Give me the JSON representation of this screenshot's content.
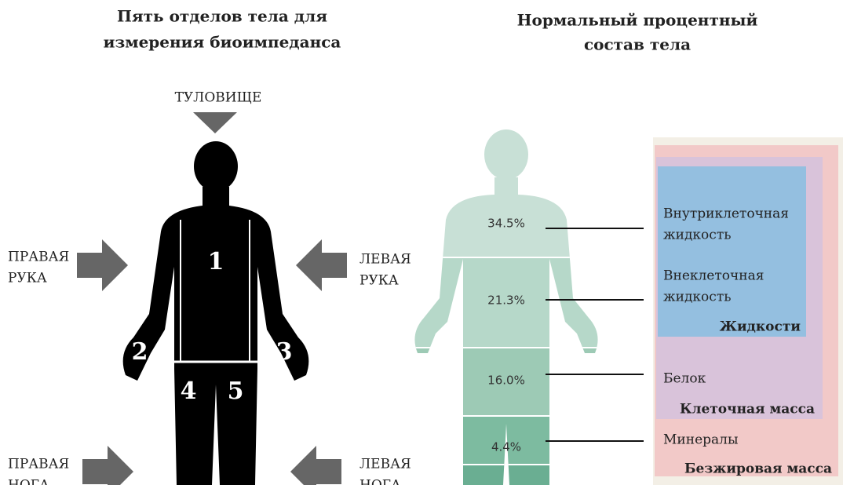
{
  "left": {
    "title": [
      "Пять отделов тела для",
      "измерения биоимпеданса"
    ],
    "trunk": "ТУЛОВИЩЕ",
    "right_arm": [
      "ПРАВАЯ",
      "РУКА"
    ],
    "left_arm": [
      "ЛЕВАЯ",
      "РУКА"
    ],
    "right_leg": [
      "ПРАВАЯ",
      "НОГА"
    ],
    "left_leg": [
      "ЛЕВАЯ",
      "НОГА"
    ],
    "segments": [
      "1",
      "2",
      "3",
      "4",
      "5"
    ]
  },
  "right": {
    "title": [
      "Нормальный процентный",
      "состав тела"
    ],
    "percentages": [
      "34.5%",
      "21.3%",
      "16.0%",
      "4.4%"
    ],
    "intracellular": [
      "Внутриклеточная",
      "жидкость"
    ],
    "extracellular": [
      "Внеклеточная",
      "жидкость"
    ],
    "fluids": "Жидкости",
    "protein": "Белок",
    "cell_mass": "Клеточная масса",
    "minerals": "Минералы",
    "lean_mass": "Безжировая масса"
  }
}
